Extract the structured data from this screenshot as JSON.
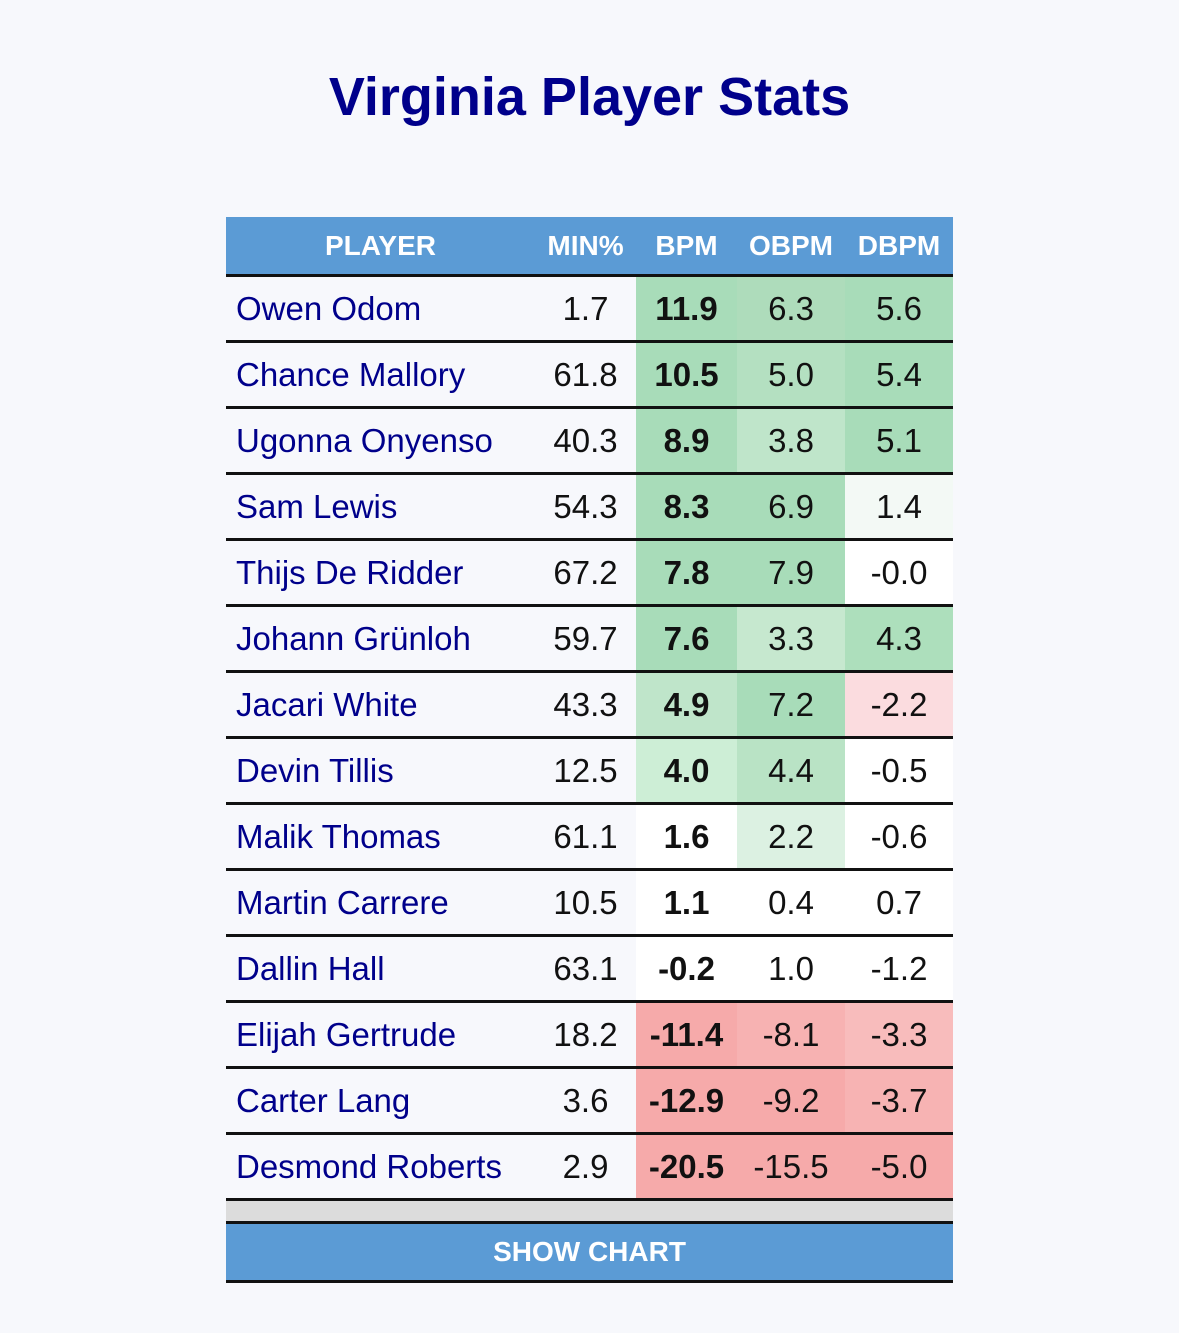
{
  "title": "Virginia Player Stats",
  "columns": [
    "PLAYER",
    "MIN%",
    "BPM",
    "OBPM",
    "DBPM"
  ],
  "rows": [
    {
      "player": "Owen Odom",
      "min": "1.7",
      "bpm": "11.9",
      "obpm": "6.3",
      "dbpm": "5.6",
      "bg": [
        "#a8dcb9",
        "#aedcbb",
        "#a8dcb9"
      ]
    },
    {
      "player": "Chance Mallory",
      "min": "61.8",
      "bpm": "10.5",
      "obpm": "5.0",
      "dbpm": "5.4",
      "bg": [
        "#a8dcb9",
        "#b4e0c1",
        "#a8dcb9"
      ]
    },
    {
      "player": "Ugonna Onyenso",
      "min": "40.3",
      "bpm": "8.9",
      "obpm": "3.8",
      "dbpm": "5.1",
      "bg": [
        "#a8dcb9",
        "#bfe5ca",
        "#a8dcb9"
      ]
    },
    {
      "player": "Sam Lewis",
      "min": "54.3",
      "bpm": "8.3",
      "obpm": "6.9",
      "dbpm": "1.4",
      "bg": [
        "#a8dcb9",
        "#a8dcb9",
        "#f3f9f5"
      ]
    },
    {
      "player": "Thijs De Ridder",
      "min": "67.2",
      "bpm": "7.8",
      "obpm": "7.9",
      "dbpm": "-0.0",
      "bg": [
        "#a8dcb9",
        "#a8dcb9",
        "#ffffff"
      ]
    },
    {
      "player": "Johann Grünloh",
      "min": "59.7",
      "bpm": "7.6",
      "obpm": "3.3",
      "dbpm": "4.3",
      "bg": [
        "#a8dcb9",
        "#c6e8cf",
        "#addfbc"
      ]
    },
    {
      "player": "Jacari White",
      "min": "43.3",
      "bpm": "4.9",
      "obpm": "7.2",
      "dbpm": "-2.2",
      "bg": [
        "#bfe5ca",
        "#a8dcb9",
        "#fbdcdf"
      ]
    },
    {
      "player": "Devin Tillis",
      "min": "12.5",
      "bpm": "4.0",
      "obpm": "4.4",
      "dbpm": "-0.5",
      "bg": [
        "#cdeed6",
        "#b9e3c5",
        "#ffffff"
      ]
    },
    {
      "player": "Malik Thomas",
      "min": "61.1",
      "bpm": "1.6",
      "obpm": "2.2",
      "dbpm": "-0.6",
      "bg": [
        "#ffffff",
        "#dcf1e2",
        "#ffffff"
      ]
    },
    {
      "player": "Martin Carrere",
      "min": "10.5",
      "bpm": "1.1",
      "obpm": "0.4",
      "dbpm": "0.7",
      "bg": [
        "#ffffff",
        "#ffffff",
        "#ffffff"
      ]
    },
    {
      "player": "Dallin Hall",
      "min": "63.1",
      "bpm": "-0.2",
      "obpm": "1.0",
      "dbpm": "-1.2",
      "bg": [
        "#ffffff",
        "#ffffff",
        "#ffffff"
      ]
    },
    {
      "player": "Elijah Gertrude",
      "min": "18.2",
      "bpm": "-11.4",
      "obpm": "-8.1",
      "dbpm": "-3.3",
      "bg": [
        "#f6aaaa",
        "#f7b2b2",
        "#f8bcbc"
      ]
    },
    {
      "player": "Carter Lang",
      "min": "3.6",
      "bpm": "-12.9",
      "obpm": "-9.2",
      "dbpm": "-3.7",
      "bg": [
        "#f6aaaa",
        "#f6aaaa",
        "#f7b3b3"
      ]
    },
    {
      "player": "Desmond Roberts",
      "min": "2.9",
      "bpm": "-20.5",
      "obpm": "-15.5",
      "dbpm": "-5.0",
      "bg": [
        "#f6aaaa",
        "#f6aaaa",
        "#f6aaaa"
      ]
    }
  ],
  "show_chart_label": "SHOW CHART"
}
